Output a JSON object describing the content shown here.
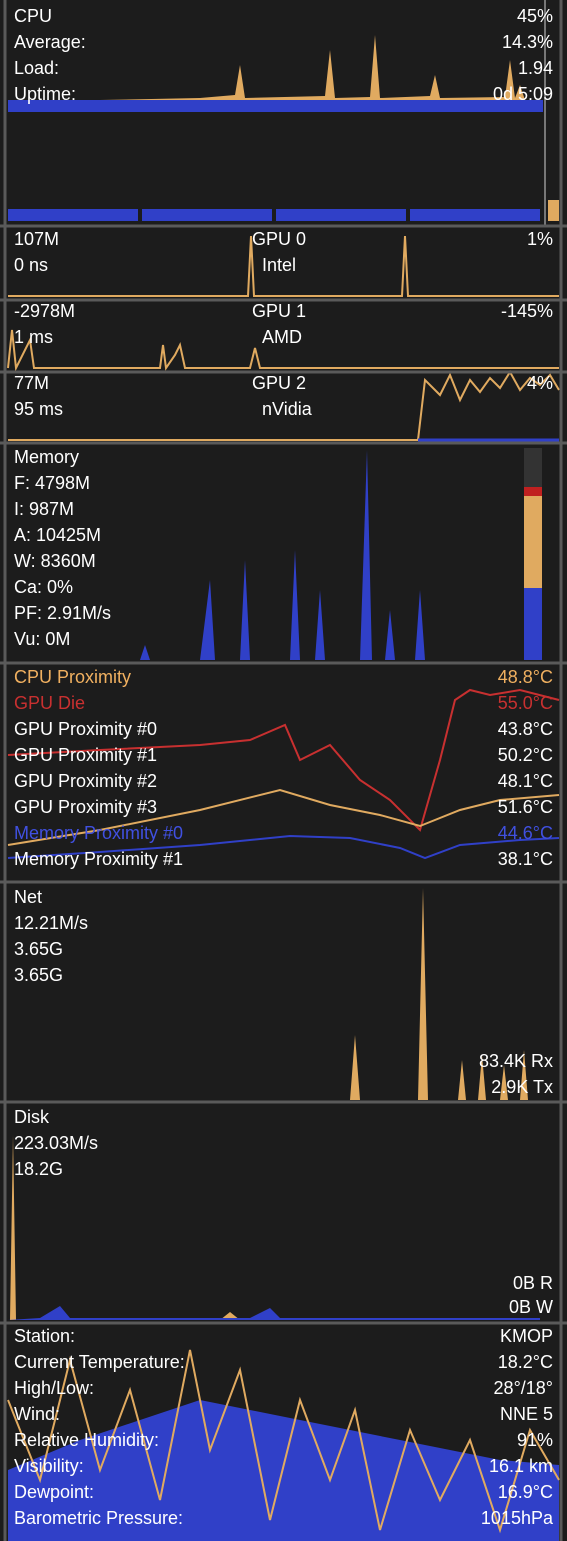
{
  "cpu": {
    "rows": [
      [
        "CPU",
        "45%"
      ],
      [
        "Average:",
        "14.3%"
      ],
      [
        "Load:",
        "1.94"
      ],
      [
        "Uptime:",
        "0d 5:09"
      ]
    ]
  },
  "gpus": [
    {
      "memory": "107M",
      "time": "0 ns",
      "name": "GPU 0",
      "vendor": "Intel",
      "usage": "1%"
    },
    {
      "memory": "-2978M",
      "time": "1 ms",
      "name": "GPU 1",
      "vendor": "AMD",
      "usage": "-145%"
    },
    {
      "memory": "77M",
      "time": "95 ms",
      "name": "GPU 2",
      "vendor": "nVidia",
      "usage": "4%"
    }
  ],
  "memory": {
    "rows": [
      "Memory",
      "F: 4798M",
      "I: 987M",
      "A: 10425M",
      "W: 8360M",
      "Ca: 0%",
      "PF: 2.91M/s",
      "Vu: 0M"
    ]
  },
  "temperatures": {
    "rows": [
      [
        "CPU Proximity",
        "48.8°C"
      ],
      [
        "GPU Die",
        "55.0°C"
      ],
      [
        "GPU Proximity #0",
        "43.8°C"
      ],
      [
        "GPU Proximity #1",
        "50.2°C"
      ],
      [
        "GPU Proximity #2",
        "48.1°C"
      ],
      [
        "GPU Proximity #3",
        "51.6°C"
      ],
      [
        "Memory Proximity #0",
        "44.6°C"
      ],
      [
        "Memory Proximity #1",
        "38.1°C"
      ]
    ]
  },
  "net": {
    "rows": [
      "Net",
      "12.21M/s",
      "3.65G",
      "3.65G"
    ],
    "rx": "83.4K Rx",
    "tx": "2.9K Tx"
  },
  "disk": {
    "rows": [
      "Disk",
      "223.03M/s",
      "18.2G"
    ],
    "read": "0B R",
    "write": "0B W"
  },
  "weather": {
    "rows": [
      [
        "Station:",
        "KMOP"
      ],
      [
        "Current Temperature:",
        "18.2°C"
      ],
      [
        "High/Low:",
        "28°/18°"
      ],
      [
        "Wind:",
        "NNE 5"
      ],
      [
        "Relative Humidity:",
        "91%"
      ],
      [
        "Visibility:",
        "16.1 km"
      ],
      [
        "Dewpoint:",
        "16.9°C"
      ],
      [
        "Barometric Pressure:",
        "1015hPa"
      ]
    ]
  }
}
